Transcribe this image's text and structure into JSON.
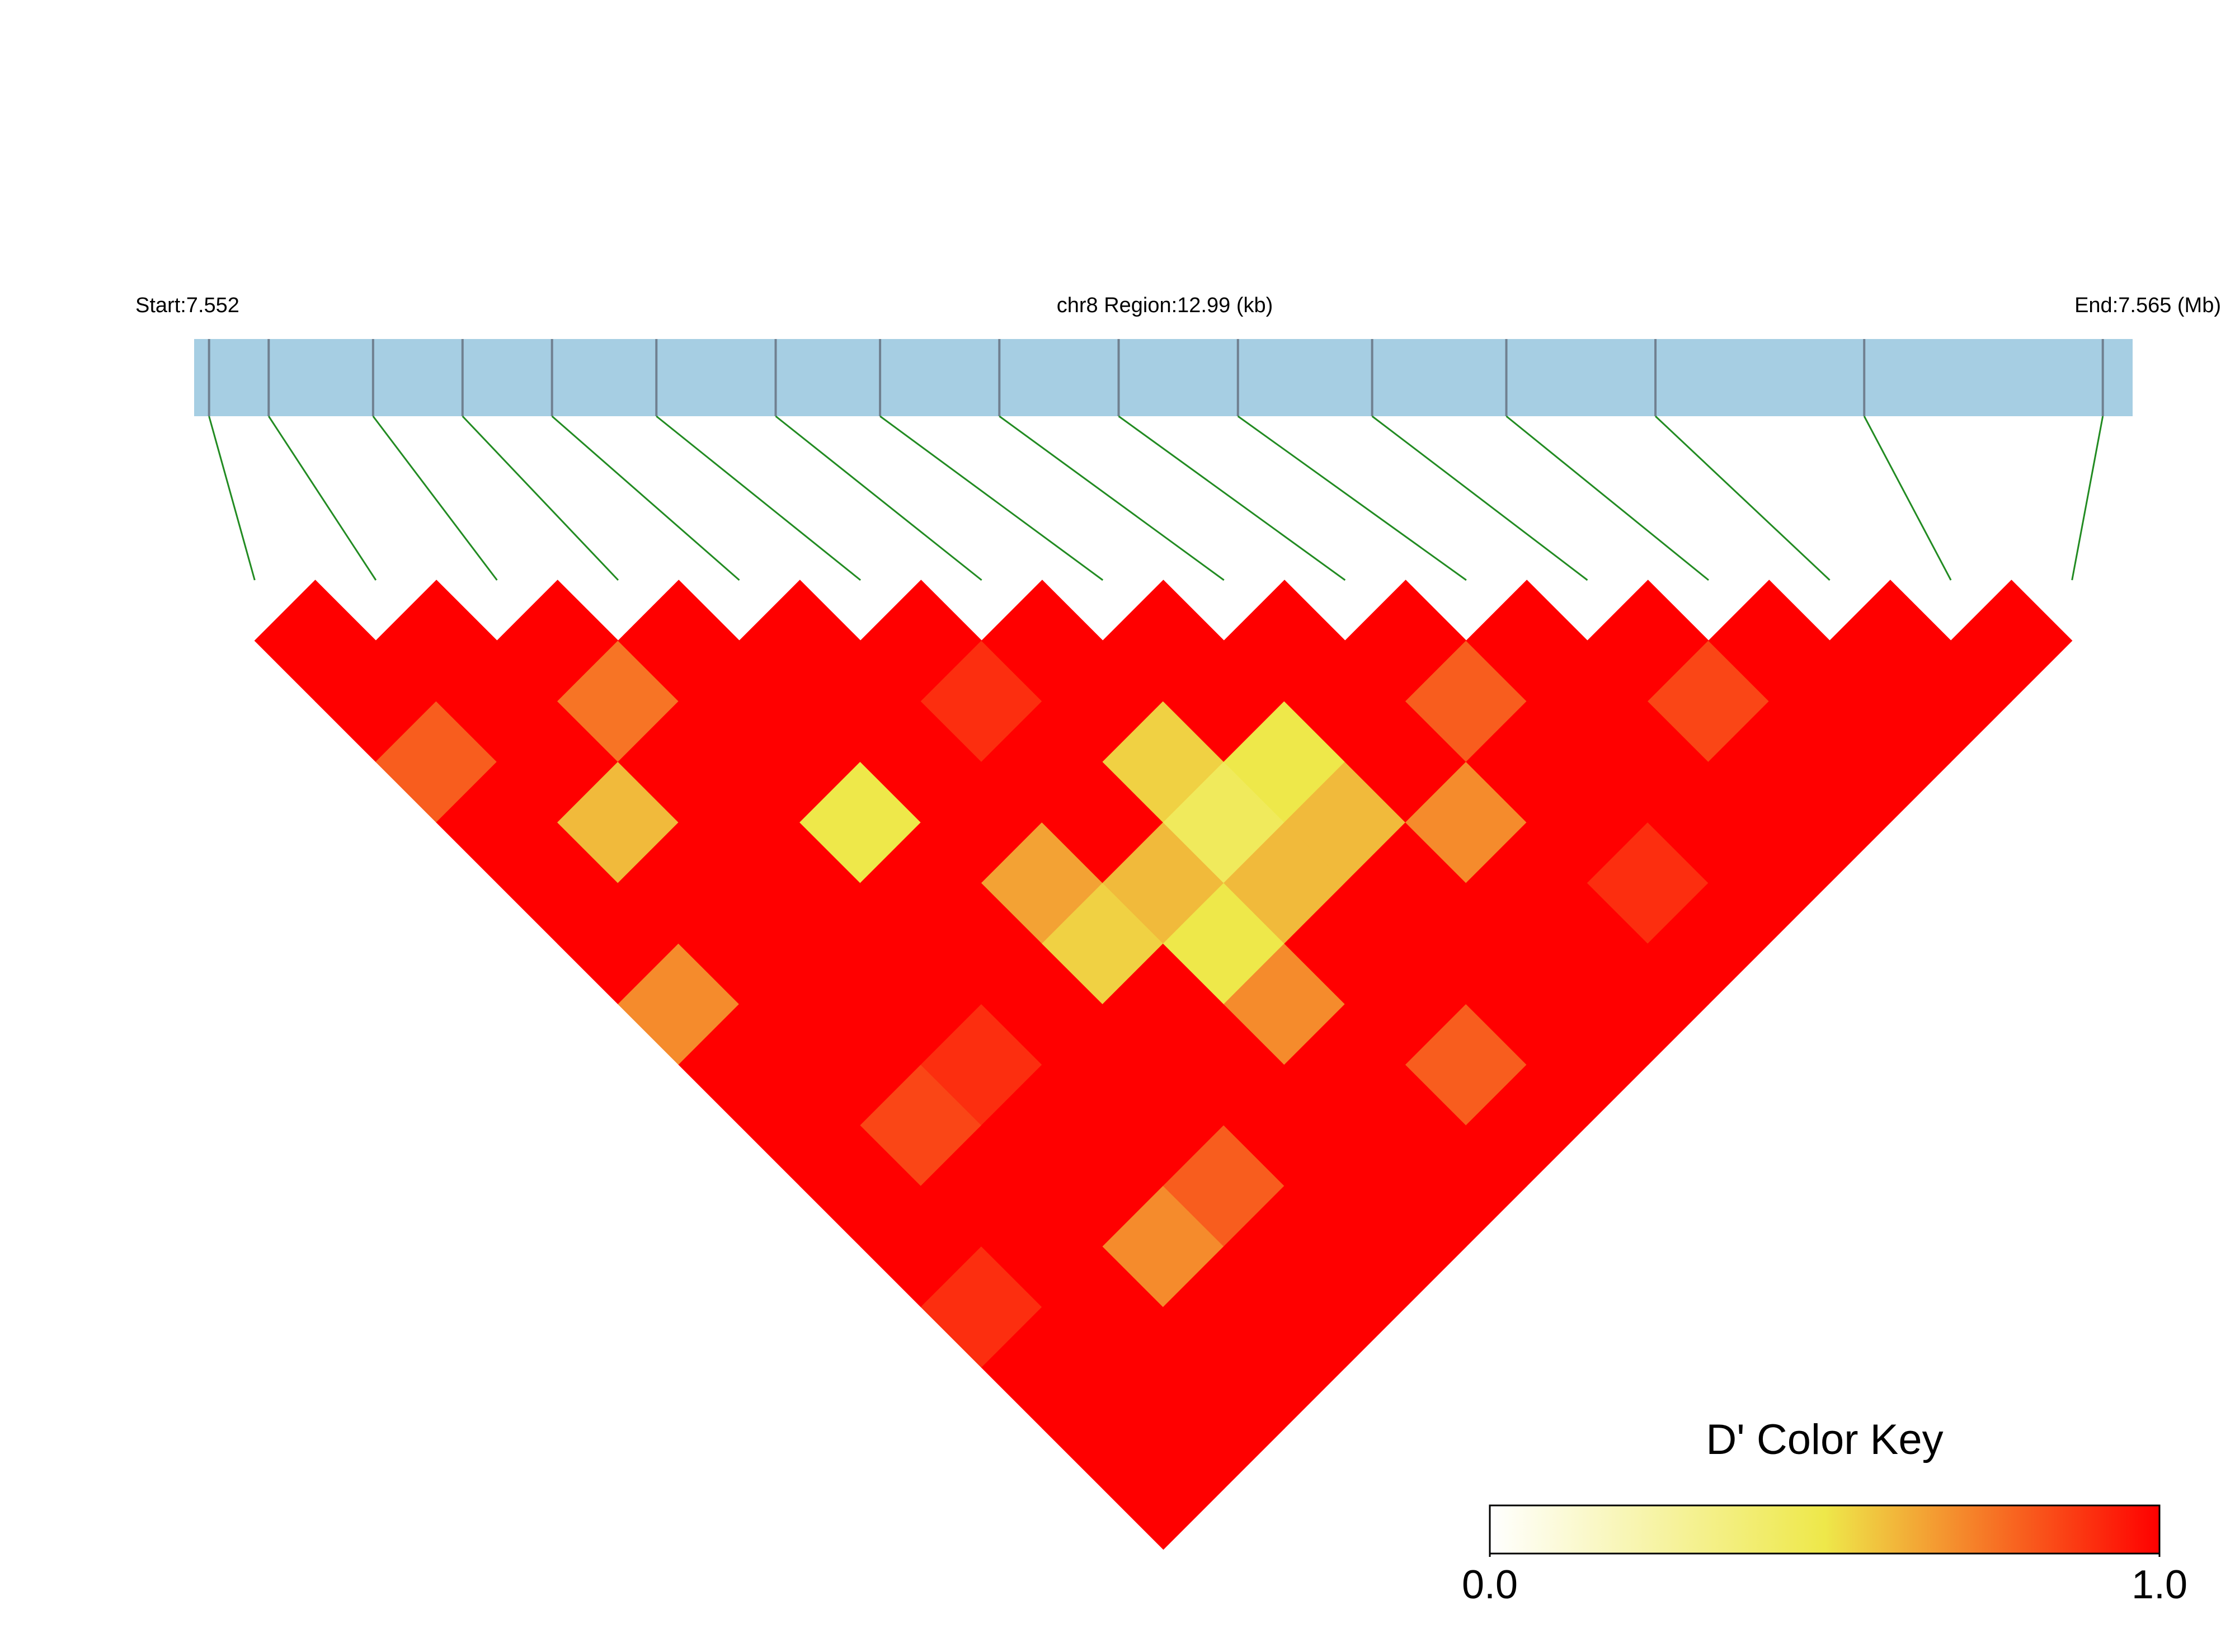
{
  "chart_data": {
    "type": "ld_heatmap",
    "start_label": "Start:7.552",
    "region_label": "chr8 Region:12.99 (kb)",
    "end_label": "End:7.565 (Mb)",
    "xlim": [
      7.552,
      7.565
    ],
    "positions": [
      7.5521,
      7.5525,
      7.5532,
      7.5538,
      7.5544,
      7.5551,
      7.5559,
      7.5566,
      7.5574,
      7.5582,
      7.559,
      7.5599,
      7.5608,
      7.5618,
      7.5632,
      7.5648
    ],
    "dprime": [
      [
        1,
        1,
        0.8,
        1,
        1,
        1,
        0.7,
        1,
        1,
        1,
        1,
        0.9,
        1,
        1,
        1
      ],
      [
        1,
        1,
        1,
        0.6,
        1,
        1,
        1,
        1,
        0.85,
        1,
        1,
        1,
        1,
        1
      ],
      [
        1,
        0.75,
        1,
        1,
        1,
        1,
        1,
        0.9,
        1,
        1,
        0.7,
        1,
        1
      ],
      [
        1,
        1,
        1,
        0.5,
        1,
        1,
        1,
        1,
        1,
        0.8,
        1,
        1
      ],
      [
        1,
        1,
        1,
        1,
        0.65,
        0.55,
        1,
        1,
        1,
        1,
        1
      ],
      [
        1,
        0.9,
        1,
        1,
        0.6,
        0.5,
        0.7,
        1,
        1,
        1
      ],
      [
        1,
        1,
        0.55,
        0.45,
        0.6,
        1,
        1,
        0.8,
        1
      ],
      [
        1,
        1,
        0.5,
        0.6,
        1,
        1,
        1,
        1
      ],
      [
        1,
        1,
        1,
        0.7,
        1,
        1,
        1
      ],
      [
        1,
        0.8,
        1,
        1,
        0.9,
        1
      ],
      [
        1,
        1,
        1,
        1,
        1
      ],
      [
        1,
        0.85,
        1,
        1
      ],
      [
        1,
        1,
        1
      ],
      [
        1,
        1
      ],
      [
        1
      ]
    ],
    "color_key": {
      "title": "D' Color Key",
      "lim": [
        0,
        1
      ],
      "ticks": [
        {
          "value": 0,
          "label": "0.0"
        },
        {
          "value": 1,
          "label": "1.0"
        }
      ],
      "colors": [
        "#ffffff",
        "#eee84a",
        "#ff0000"
      ]
    },
    "track_color": "#a6cee3",
    "tick_color": "#708090",
    "link_color": "#228b22"
  }
}
